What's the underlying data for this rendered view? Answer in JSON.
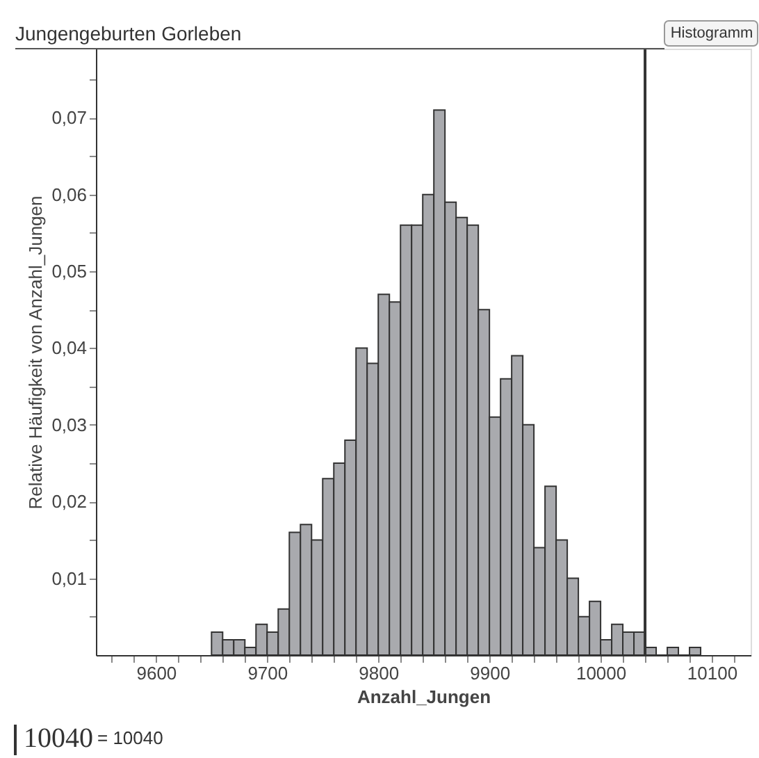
{
  "chart_data": {
    "type": "histogram",
    "title": "Jungengeburten Gorleben",
    "xlabel": "Anzahl_Jungen",
    "ylabel": "Relative Häufigkeit von Anzahl_Jungen",
    "bins": [
      9650,
      9660,
      9670,
      9680,
      9690,
      9700,
      9710,
      9720,
      9730,
      9740,
      9750,
      9760,
      9770,
      9780,
      9790,
      9800,
      9810,
      9820,
      9830,
      9840,
      9850,
      9860,
      9870,
      9880,
      9890,
      9900,
      9910,
      9920,
      9930,
      9940,
      9950,
      9960,
      9970,
      9980,
      9990,
      10000,
      10010,
      10020,
      10030,
      10040,
      10050,
      10060,
      10070,
      10080,
      10090
    ],
    "values": [
      0.003,
      0.002,
      0.002,
      0.001,
      0.004,
      0.003,
      0.006,
      0.016,
      0.017,
      0.015,
      0.023,
      0.025,
      0.028,
      0.04,
      0.038,
      0.047,
      0.046,
      0.056,
      0.056,
      0.06,
      0.071,
      0.059,
      0.057,
      0.056,
      0.045,
      0.031,
      0.036,
      0.039,
      0.03,
      0.014,
      0.022,
      0.015,
      0.01,
      0.005,
      0.007,
      0.002,
      0.004,
      0.003,
      0.003,
      0.001,
      0,
      0.001,
      0,
      0.001
    ],
    "color": "#a9aaae",
    "xlim": [
      9546,
      10135
    ],
    "xticks": [
      {
        "value": 9560,
        "label": null
      },
      {
        "value": 9580,
        "label": null
      },
      9600,
      {
        "value": 9620,
        "label": null
      },
      {
        "value": 9640,
        "label": null
      },
      {
        "value": 9660,
        "label": null
      },
      {
        "value": 9680,
        "label": null
      },
      9700,
      {
        "value": 9720,
        "label": null
      },
      {
        "value": 9740,
        "label": null
      },
      {
        "value": 9760,
        "label": null
      },
      {
        "value": 9780,
        "label": null
      },
      9800,
      {
        "value": 9820,
        "label": null
      },
      {
        "value": 9840,
        "label": null
      },
      {
        "value": 9860,
        "label": null
      },
      {
        "value": 9880,
        "label": null
      },
      9900,
      {
        "value": 9920,
        "label": null
      },
      {
        "value": 9940,
        "label": null
      },
      {
        "value": 9960,
        "label": null
      },
      {
        "value": 9980,
        "label": null
      },
      10000,
      {
        "value": 10020,
        "label": null
      },
      {
        "value": 10040,
        "label": null
      },
      {
        "value": 10060,
        "label": null
      },
      {
        "value": 10080,
        "label": null
      },
      10100,
      {
        "value": 10120,
        "label": null
      }
    ],
    "ylim": [
      0,
      0.079
    ],
    "yticks": [
      {
        "value": 0.005,
        "label": null
      },
      {
        "value": 0.01,
        "label": "0,01"
      },
      {
        "value": 0.015,
        "label": null
      },
      {
        "value": 0.02,
        "label": "0,02"
      },
      {
        "value": 0.025,
        "label": null
      },
      {
        "value": 0.03,
        "label": "0,03"
      },
      {
        "value": 0.035,
        "label": null
      },
      {
        "value": 0.04,
        "label": "0,04"
      },
      {
        "value": 0.045,
        "label": null
      },
      {
        "value": 0.05,
        "label": "0,05"
      },
      {
        "value": 0.055,
        "label": null
      },
      {
        "value": 0.06,
        "label": "0,06"
      },
      {
        "value": 0.065,
        "label": null
      },
      {
        "value": 0.07,
        "label": "0,07"
      },
      {
        "value": 0.075,
        "label": null
      }
    ],
    "ref_lines": [
      {
        "axis": "x",
        "value": 10040,
        "color": "#333333"
      }
    ],
    "annotations": [
      "Histogramm",
      "10040",
      "= 10040"
    ],
    "grid": false
  }
}
